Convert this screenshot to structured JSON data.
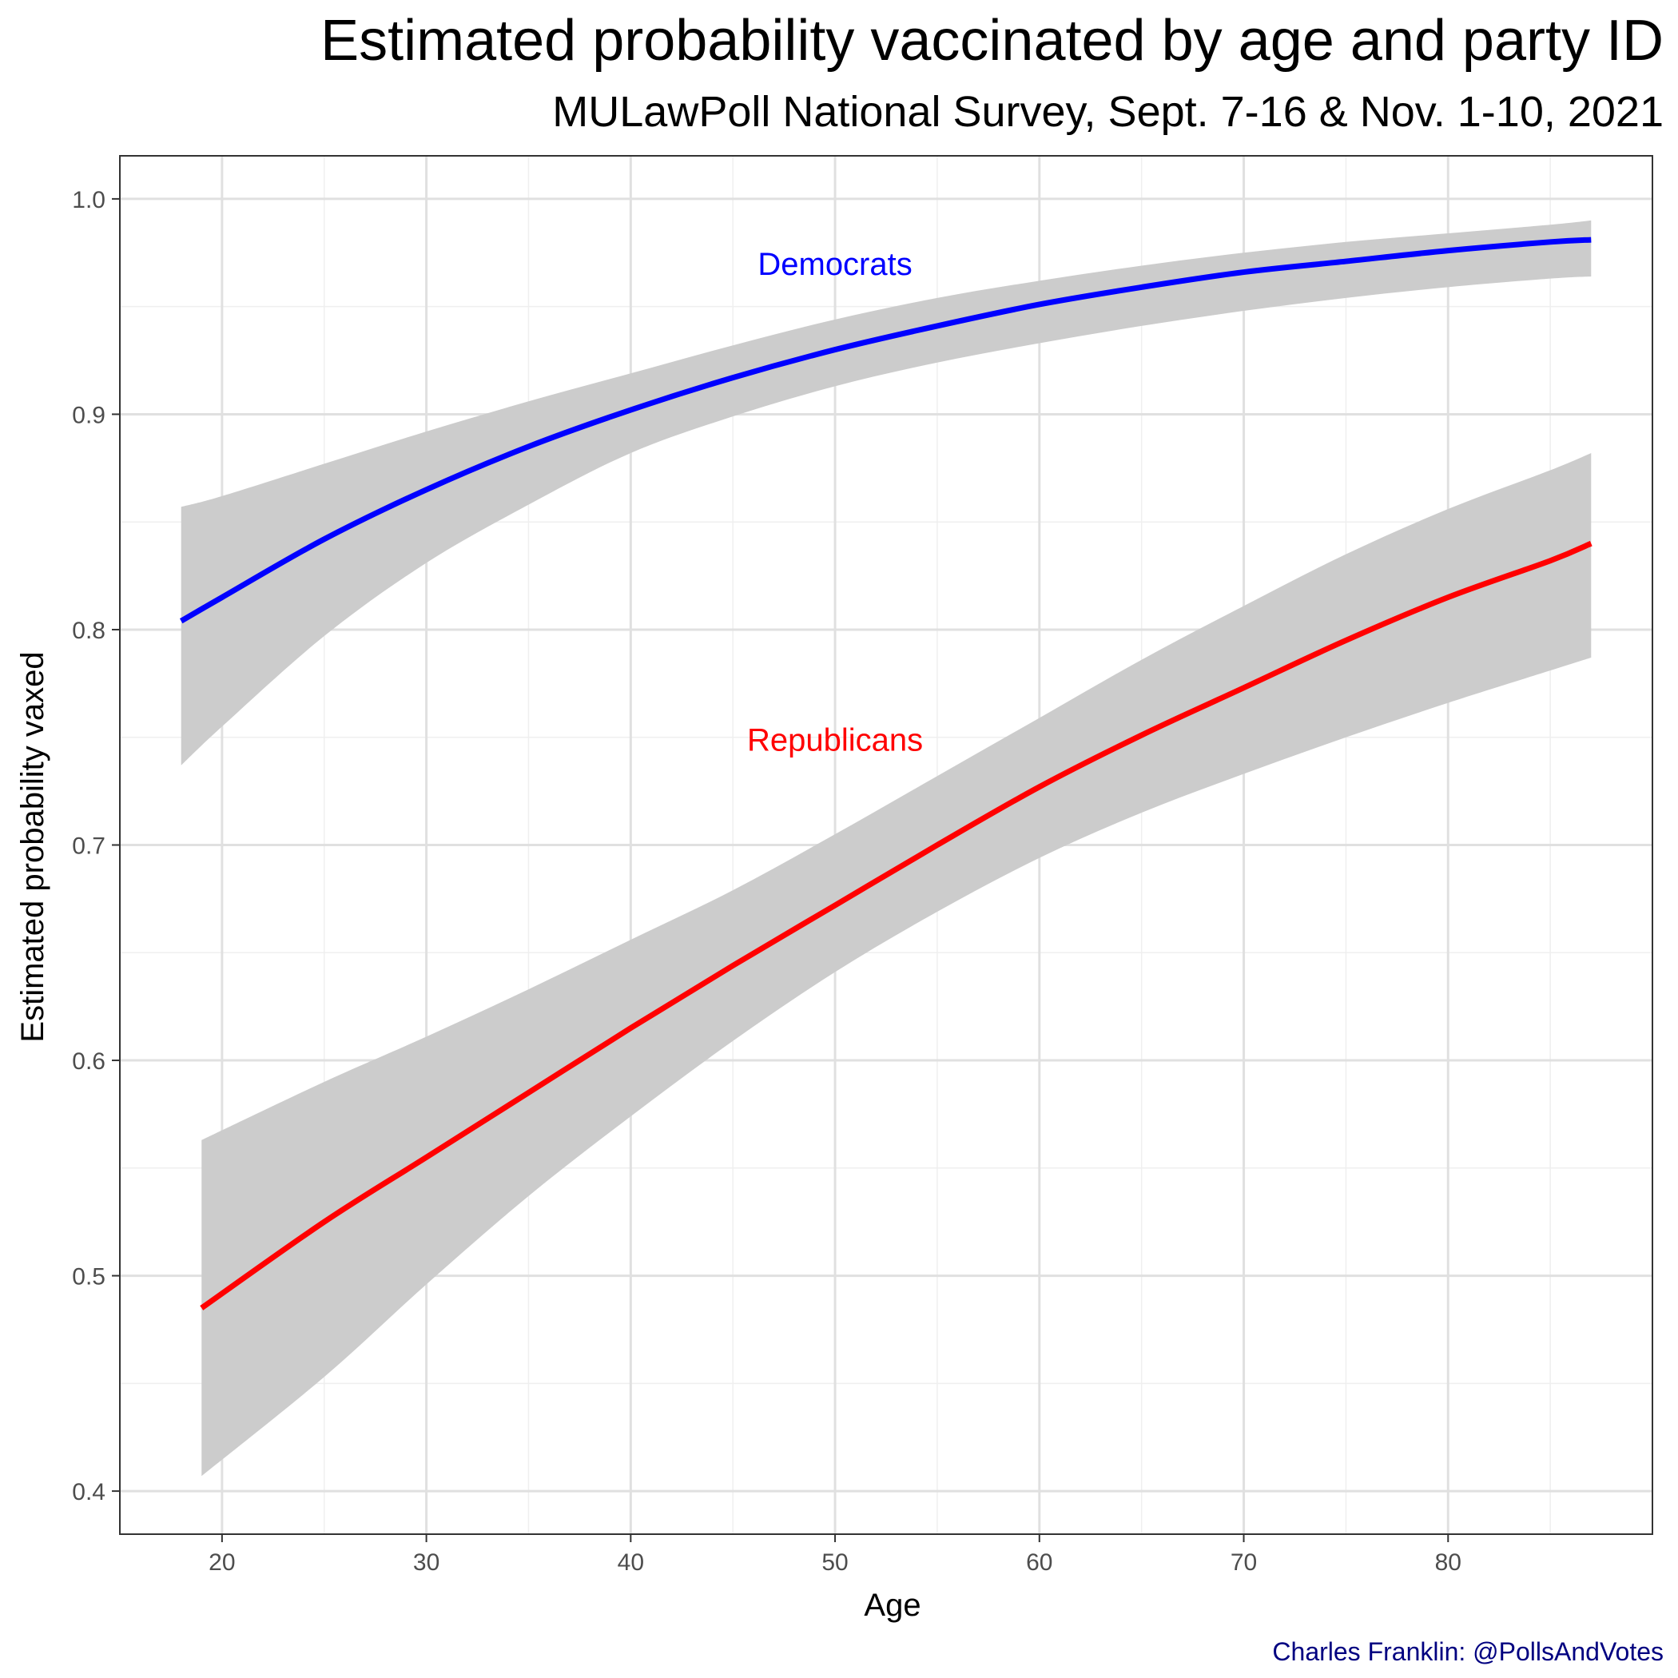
{
  "title": "Estimated probability vaccinated by age and party ID",
  "subtitle": "MULawPoll National Survey, Sept. 7-16 & Nov. 1-10, 2021",
  "caption": "Charles Franklin: @PollsAndVotes",
  "colors": {
    "democrats": "#0000ff",
    "republicans": "#ff0000",
    "ribbon": "#cccccc",
    "caption": "#000080",
    "grid_major": "#e0e0e0",
    "grid_minor": "#efefef",
    "panel_border": "#333333"
  },
  "chart_data": {
    "type": "line",
    "title": "Estimated probability vaccinated by age and party ID",
    "subtitle": "MULawPoll National Survey, Sept. 7-16 & Nov. 1-10, 2021",
    "xlabel": "Age",
    "ylabel": "Estimated probability vaxed",
    "xlim": [
      15,
      90
    ],
    "ylim": [
      0.38,
      1.02
    ],
    "x_ticks": [
      20,
      30,
      40,
      50,
      60,
      70,
      80
    ],
    "x_tick_labels": [
      "20",
      "30",
      "40",
      "50",
      "60",
      "70",
      "80"
    ],
    "y_ticks": [
      0.4,
      0.5,
      0.6,
      0.7,
      0.8,
      0.9,
      1.0
    ],
    "y_tick_labels": [
      "0.4",
      "0.5",
      "0.6",
      "0.7",
      "0.8",
      "0.9",
      "1.0"
    ],
    "grid": true,
    "legend": "none",
    "series": [
      {
        "name": "Democrats",
        "color": "#0000ff",
        "label_at": {
          "x": 50,
          "y": 0.97
        },
        "x": [
          18,
          20,
          25,
          30,
          35,
          40,
          45,
          50,
          55,
          60,
          65,
          70,
          75,
          80,
          85,
          87
        ],
        "y": [
          0.804,
          0.815,
          0.842,
          0.865,
          0.885,
          0.902,
          0.917,
          0.93,
          0.941,
          0.951,
          0.959,
          0.966,
          0.971,
          0.976,
          0.98,
          0.981
        ],
        "lower": [
          0.737,
          0.755,
          0.797,
          0.831,
          0.858,
          0.882,
          0.899,
          0.913,
          0.924,
          0.933,
          0.941,
          0.948,
          0.954,
          0.959,
          0.963,
          0.964
        ],
        "upper": [
          0.857,
          0.862,
          0.877,
          0.892,
          0.906,
          0.919,
          0.932,
          0.944,
          0.954,
          0.962,
          0.969,
          0.975,
          0.98,
          0.984,
          0.988,
          0.99
        ]
      },
      {
        "name": "Republicans",
        "color": "#ff0000",
        "label_at": {
          "x": 50,
          "y": 0.749
        },
        "x": [
          19,
          25,
          30,
          35,
          40,
          45,
          50,
          55,
          60,
          65,
          70,
          75,
          80,
          85,
          87
        ],
        "y": [
          0.485,
          0.525,
          0.555,
          0.585,
          0.615,
          0.644,
          0.672,
          0.7,
          0.727,
          0.751,
          0.773,
          0.795,
          0.815,
          0.832,
          0.84
        ],
        "lower": [
          0.407,
          0.453,
          0.496,
          0.537,
          0.574,
          0.609,
          0.641,
          0.669,
          0.694,
          0.715,
          0.733,
          0.75,
          0.766,
          0.781,
          0.787
        ],
        "upper": [
          0.563,
          0.59,
          0.611,
          0.633,
          0.656,
          0.679,
          0.705,
          0.732,
          0.759,
          0.786,
          0.811,
          0.835,
          0.856,
          0.874,
          0.882
        ]
      }
    ]
  }
}
